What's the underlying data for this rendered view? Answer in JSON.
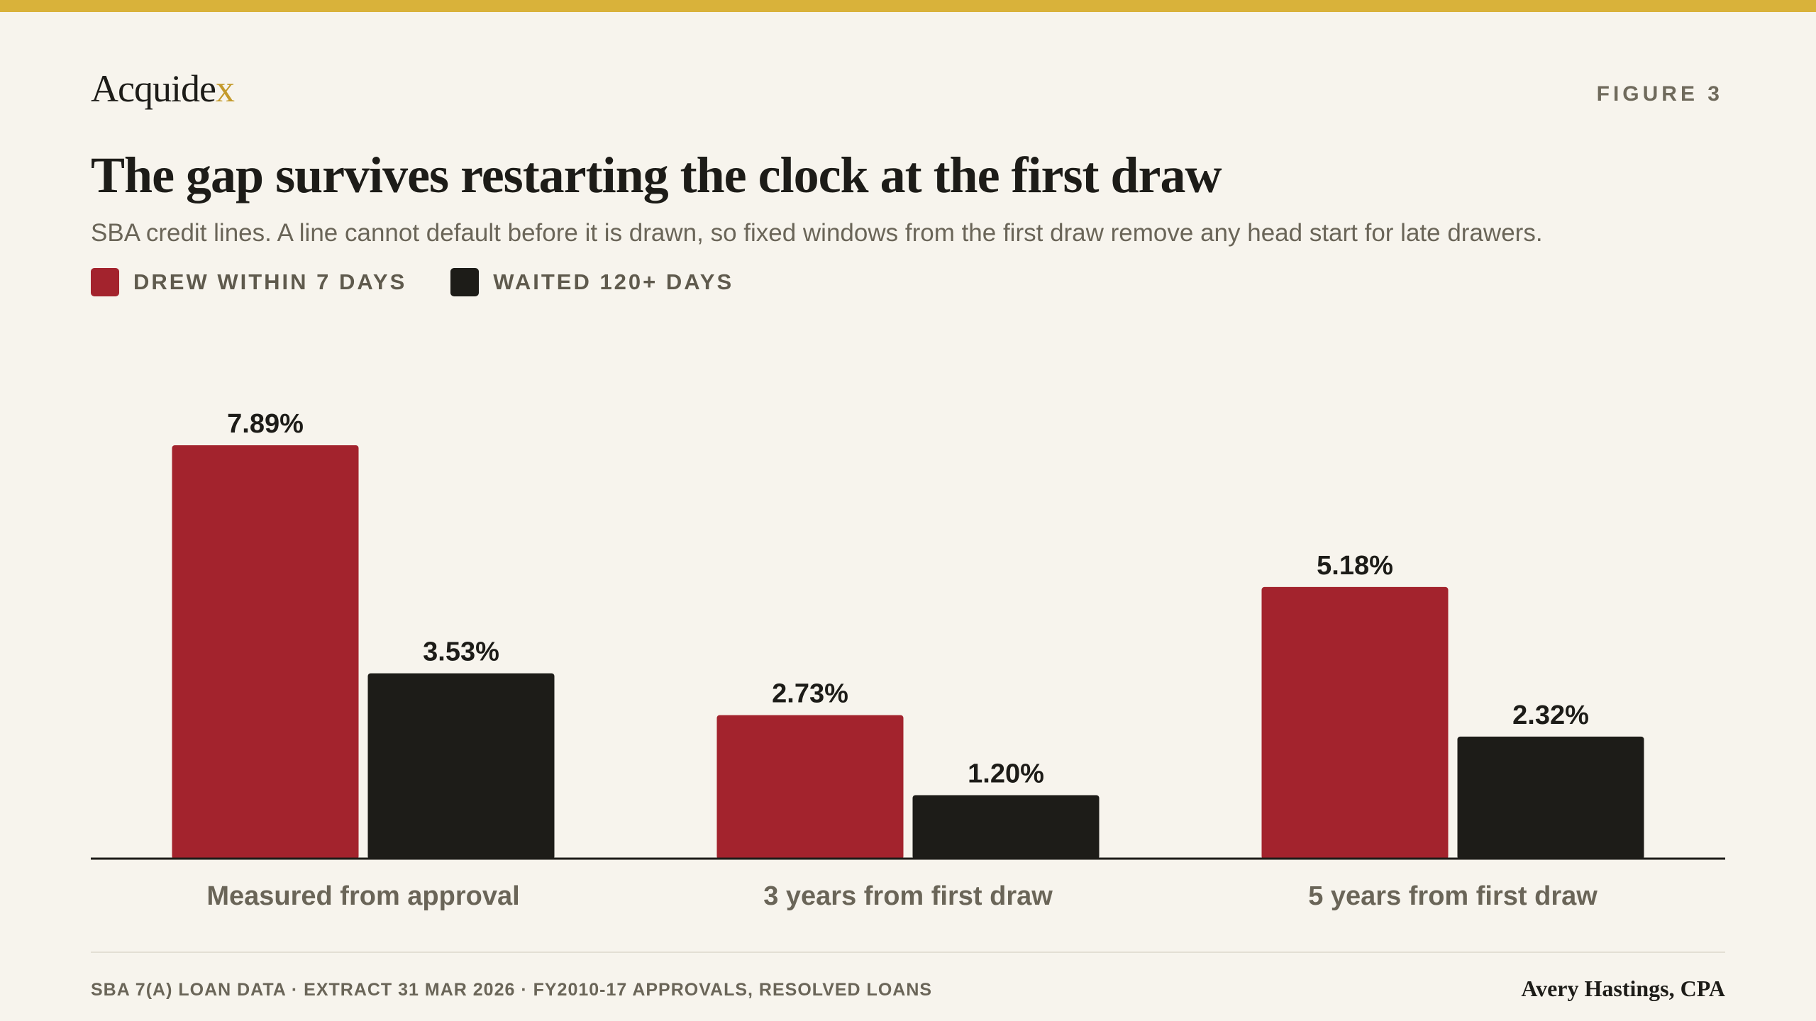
{
  "brand": {
    "name_main": "Acquide",
    "name_accent": "x"
  },
  "figure_label": "FIGURE 3",
  "colors": {
    "top_bar": "#d9b23a",
    "background": "#f7f4ed",
    "series_drew_early": "#a3232d",
    "series_waited": "#1d1c18",
    "axis": "#1d1c18",
    "category_label": "#6a6558"
  },
  "chart_data": {
    "type": "bar",
    "title": "The gap survives restarting the clock at the first draw",
    "subtitle": "SBA credit lines. A line cannot default before it is drawn, so fixed windows from the first draw remove any head start for late drawers.",
    "categories": [
      "Measured from approval",
      "3 years from first draw",
      "5 years from first draw"
    ],
    "series": [
      {
        "name": "DREW WITHIN 7 DAYS",
        "color": "#a3232d",
        "values": [
          7.89,
          2.73,
          5.18
        ],
        "labels": [
          "7.89%",
          "2.73%",
          "5.18%"
        ]
      },
      {
        "name": "WAITED 120+ DAYS",
        "color": "#1d1c18",
        "values": [
          3.53,
          1.2,
          2.32
        ],
        "labels": [
          "3.53%",
          "1.20%",
          "2.32%"
        ]
      }
    ],
    "xlabel": "",
    "ylabel": "",
    "ylim": [
      0,
      7.89
    ],
    "grid": false,
    "legend_position": "top-left"
  },
  "footer": {
    "source": "SBA 7(A) LOAN DATA · EXTRACT 31 MAR 2026 · FY2010-17 APPROVALS, RESOLVED LOANS",
    "author": "Avery Hastings, CPA"
  }
}
